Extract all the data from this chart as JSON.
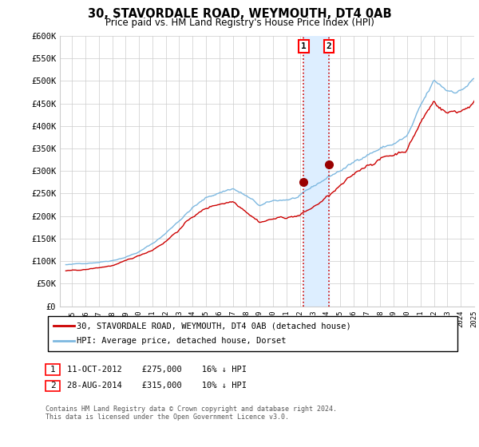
{
  "title": "30, STAVORDALE ROAD, WEYMOUTH, DT4 0AB",
  "subtitle": "Price paid vs. HM Land Registry's House Price Index (HPI)",
  "ylim": [
    0,
    600000
  ],
  "yticks": [
    0,
    50000,
    100000,
    150000,
    200000,
    250000,
    300000,
    350000,
    400000,
    450000,
    500000,
    550000,
    600000
  ],
  "ytick_labels": [
    "£0",
    "£50K",
    "£100K",
    "£150K",
    "£200K",
    "£250K",
    "£300K",
    "£350K",
    "£400K",
    "£450K",
    "£500K",
    "£550K",
    "£600K"
  ],
  "hpi_color": "#7db8e0",
  "price_color": "#cc0000",
  "vline_color": "#cc0000",
  "shade_color": "#ddeeff",
  "marker_color": "#990000",
  "background_color": "#ffffff",
  "grid_color": "#cccccc",
  "transaction1_date": 2012.78,
  "transaction1_price": 275000,
  "transaction2_date": 2014.65,
  "transaction2_price": 315000,
  "legend1": "30, STAVORDALE ROAD, WEYMOUTH, DT4 0AB (detached house)",
  "legend2": "HPI: Average price, detached house, Dorset",
  "annot1_text": "11-OCT-2012    £275,000    16% ↓ HPI",
  "annot2_text": "28-AUG-2014    £315,000    10% ↓ HPI",
  "footer": "Contains HM Land Registry data © Crown copyright and database right 2024.\nThis data is licensed under the Open Government Licence v3.0."
}
